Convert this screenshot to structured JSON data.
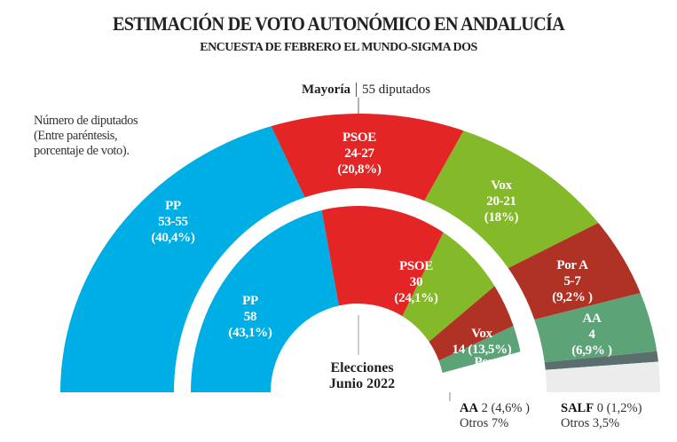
{
  "title": "ESTIMACIÓN DE VOTO AUTONÓMICO EN ANDALUCÍA",
  "subtitle": "ENCUESTA DE FEBRERO EL MUNDO-SIGMA DOS",
  "majority": {
    "label": "Mayoría",
    "value": "55 diputados"
  },
  "note": [
    "Número de diputados",
    "(Entre paréntesis,",
    "porcentaje de voto)."
  ],
  "chart_data": {
    "type": "pie",
    "title": "ESTIMACIÓN DE VOTO AUTONÓMICO EN ANDALUCÍA",
    "rings": [
      {
        "name": "Encuesta febrero",
        "series": [
          {
            "party": "PP",
            "seats": "53-55",
            "pct": 40.4,
            "pct_label": "(40,4%)",
            "color": "#00aee6"
          },
          {
            "party": "PSOE",
            "seats": "24-27",
            "pct": 20.8,
            "pct_label": "(20,8%)",
            "color": "#e42526"
          },
          {
            "party": "Vox",
            "seats": "20-21",
            "pct": 18,
            "pct_label": "(18%)",
            "color": "#84b92a"
          },
          {
            "party": "Por A",
            "seats": "5-7",
            "pct": 9.2,
            "pct_label": "(9,2% )",
            "color": "#b03225"
          },
          {
            "party": "AA",
            "seats": "4",
            "pct": 6.9,
            "pct_label": "(6,9% )",
            "color": "#5da378"
          },
          {
            "party": "SALF",
            "seats": "0",
            "pct": 1.2,
            "pct_label": "(1,2%)",
            "color": "#5a6e6e"
          },
          {
            "party": "Otros",
            "seats": "",
            "pct": 3.5,
            "pct_label": "Otros 3,5%",
            "color": "#ececec"
          }
        ]
      },
      {
        "name": "Elecciones Junio 2022",
        "series": [
          {
            "party": "PP",
            "seats": "58",
            "pct": 43.1,
            "pct_label": "(43,1%)",
            "color": "#00aee6"
          },
          {
            "party": "PSOE",
            "seats": "30",
            "pct": 24.1,
            "pct_label": "(24,1%)",
            "color": "#e42526"
          },
          {
            "party": "Vox",
            "seats": "14",
            "pct": 13.5,
            "pct_label": "(13,5%)",
            "color": "#84b92a"
          },
          {
            "party": "Por A",
            "seats": "5",
            "pct": 7.7,
            "pct_label": "(7,7%)",
            "color": "#b03225"
          },
          {
            "party": "AA",
            "seats": "2",
            "pct": 4.6,
            "pct_label": "(4,6% )",
            "color": "#5da378"
          },
          {
            "party": "Otros",
            "seats": "",
            "pct": 7,
            "pct_label": "Otros 7%",
            "color": "#ffffff"
          }
        ]
      }
    ]
  },
  "inner_caption": [
    "Elecciones",
    "Junio 2022"
  ],
  "inner_footnote": {
    "party": "AA",
    "value": "2 (4,6% )",
    "others": "Otros 7%"
  },
  "outer_footnote": {
    "party": "SALF",
    "value": "0 (1,2%)",
    "others": "Otros 3,5%"
  }
}
